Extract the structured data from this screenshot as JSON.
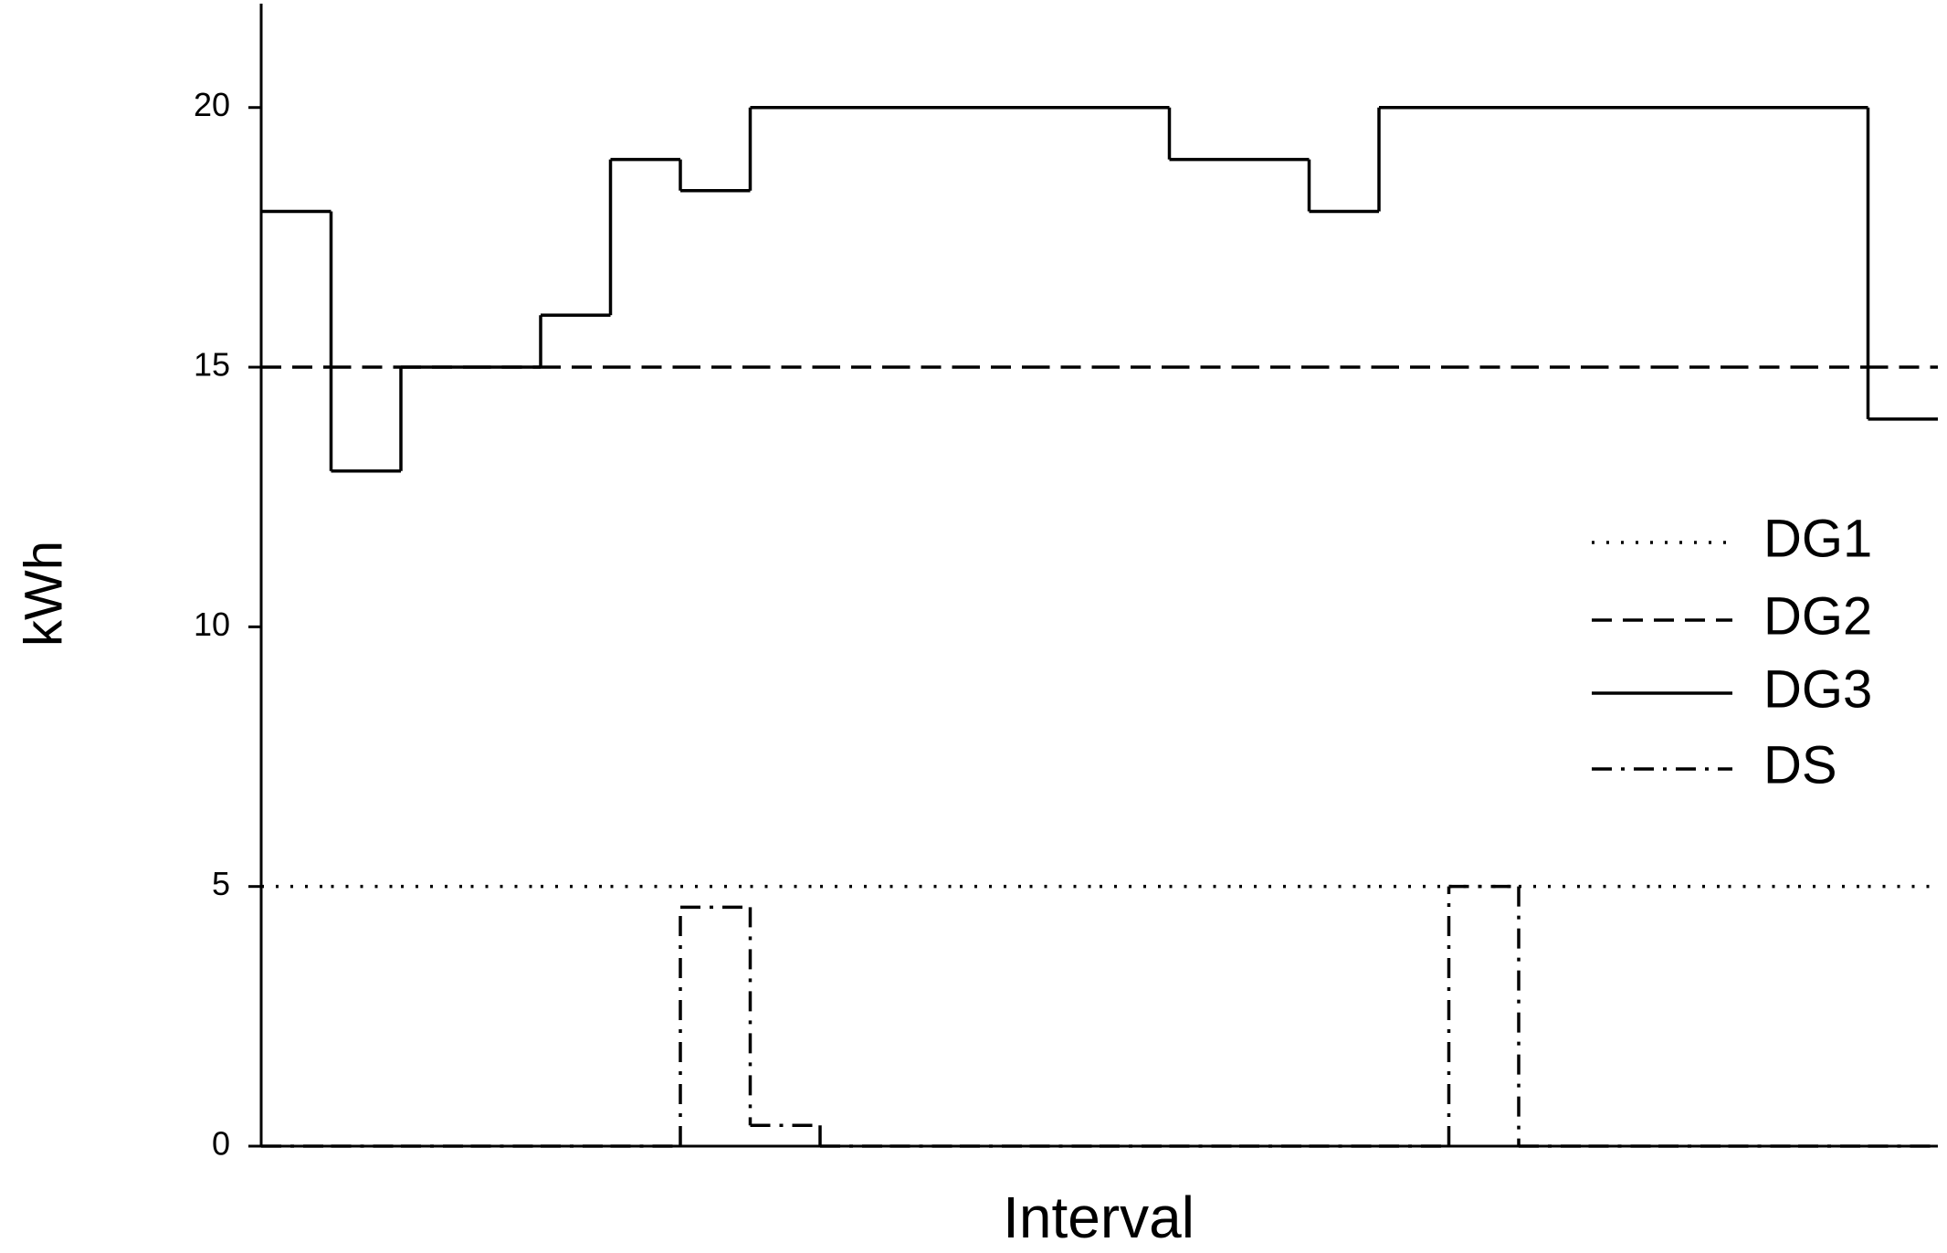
{
  "chart_data": {
    "type": "step",
    "ylabel": "kWh",
    "xlabel": "Interval",
    "categories": [
      null,
      null,
      null,
      null,
      null,
      null,
      null,
      null,
      null,
      null,
      null,
      null,
      null,
      null,
      null,
      null,
      null,
      null,
      null,
      null,
      null,
      null,
      null,
      null
    ],
    "series": [
      {
        "name": "DG1",
        "color": "#000000",
        "style": "dotted",
        "values": [
          5,
          5,
          5,
          5,
          5,
          5,
          5,
          5,
          5,
          5,
          5,
          5,
          5,
          5,
          5,
          5,
          5,
          5,
          5,
          5,
          5,
          5,
          5,
          5
        ]
      },
      {
        "name": "DG2",
        "color": "#000000",
        "style": "dashed",
        "values": [
          15,
          15,
          15,
          15,
          15,
          15,
          15,
          15,
          15,
          15,
          15,
          15,
          15,
          15,
          15,
          15,
          15,
          15,
          15,
          15,
          15,
          15,
          15,
          15
        ]
      },
      {
        "name": "DG3",
        "color": "#000000",
        "style": "solid",
        "values": [
          18,
          13,
          15,
          15,
          16,
          19,
          18.4,
          20,
          20,
          20,
          20,
          20,
          20,
          19,
          19,
          18,
          20,
          20,
          20,
          20,
          20,
          20,
          20,
          14
        ]
      },
      {
        "name": "DS",
        "color": "#000000",
        "style": "dashdot",
        "values": [
          0,
          0,
          0,
          0,
          0,
          0,
          4.6,
          0.4,
          0,
          0,
          0,
          0,
          0,
          0,
          0,
          0,
          0,
          5,
          0,
          0,
          0,
          0,
          0,
          0
        ]
      }
    ],
    "ylim": [
      0,
      22
    ],
    "yticks": [
      0,
      5,
      10,
      15,
      20
    ],
    "grid": false,
    "legend": "right"
  }
}
